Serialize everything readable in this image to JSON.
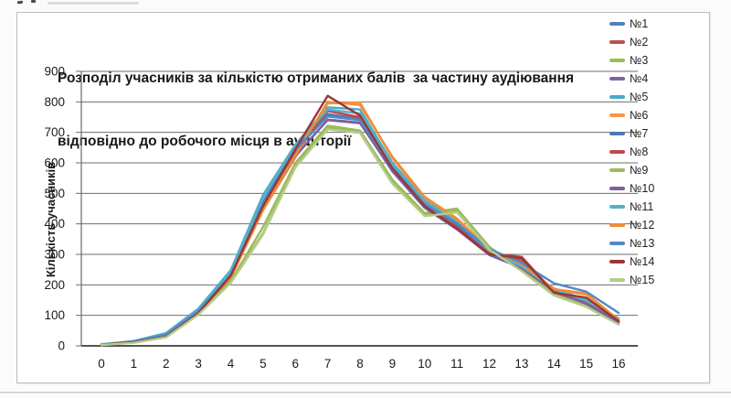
{
  "page": {
    "background": "#ffffff"
  },
  "chart_data": {
    "type": "line",
    "title_line1": "Розподіл учасників за кількістю отриманих балів  за частину аудіювання",
    "title_line2": "відповідно до робочого місця в аудиторії",
    "ylabel": "Кількість учасників",
    "xlabel": "",
    "x": [
      0,
      1,
      2,
      3,
      4,
      5,
      6,
      7,
      8,
      9,
      10,
      11,
      12,
      13,
      14,
      15,
      16
    ],
    "ylim": [
      0,
      900
    ],
    "y_ticks": [
      0,
      100,
      200,
      300,
      400,
      500,
      600,
      700,
      800,
      900
    ],
    "grid": true,
    "legend_position": "right",
    "grid_color": "#6e6e6e",
    "axis_color": "#3c3c3c",
    "minor_axis_color": "#6b6b6b",
    "series": [
      {
        "name": "№1",
        "color": "#4F81BD",
        "values": [
          4,
          14,
          36,
          113,
          230,
          465,
          640,
          760,
          745,
          590,
          470,
          400,
          310,
          265,
          185,
          148,
          85
        ]
      },
      {
        "name": "№2",
        "color": "#C0504D",
        "values": [
          4,
          13,
          32,
          110,
          225,
          455,
          635,
          770,
          750,
          580,
          460,
          390,
          305,
          280,
          178,
          143,
          80
        ]
      },
      {
        "name": "№3",
        "color": "#9BBB59",
        "values": [
          3,
          11,
          30,
          106,
          210,
          370,
          590,
          715,
          700,
          540,
          430,
          445,
          320,
          252,
          172,
          133,
          74
        ]
      },
      {
        "name": "№4",
        "color": "#8064A2",
        "values": [
          4,
          14,
          35,
          112,
          228,
          450,
          625,
          740,
          730,
          575,
          455,
          385,
          300,
          258,
          182,
          140,
          79
        ]
      },
      {
        "name": "№5",
        "color": "#4BACC6",
        "values": [
          5,
          16,
          42,
          122,
          248,
          495,
          660,
          782,
          775,
          600,
          480,
          410,
          315,
          262,
          188,
          150,
          90
        ]
      },
      {
        "name": "№6",
        "color": "#F79646",
        "values": [
          4,
          13,
          33,
          110,
          222,
          445,
          618,
          795,
          798,
          615,
          485,
          415,
          312,
          266,
          184,
          168,
          86
        ]
      },
      {
        "name": "№7",
        "color": "#4779B7",
        "values": [
          4,
          15,
          38,
          115,
          235,
          470,
          648,
          755,
          742,
          588,
          468,
          398,
          308,
          260,
          186,
          146,
          84
        ]
      },
      {
        "name": "№8",
        "color": "#BE4B48",
        "values": [
          4,
          12,
          31,
          108,
          224,
          452,
          632,
          772,
          748,
          578,
          455,
          388,
          303,
          292,
          176,
          141,
          78
        ]
      },
      {
        "name": "№9",
        "color": "#9CBB5C",
        "values": [
          3,
          11,
          29,
          104,
          212,
          390,
          600,
          722,
          706,
          545,
          435,
          450,
          325,
          248,
          168,
          130,
          72
        ]
      },
      {
        "name": "№10",
        "color": "#7C60A0",
        "values": [
          4,
          14,
          34,
          111,
          226,
          448,
          622,
          742,
          732,
          572,
          452,
          382,
          298,
          255,
          180,
          138,
          77
        ]
      },
      {
        "name": "№11",
        "color": "#55B1C8",
        "values": [
          5,
          15,
          40,
          118,
          242,
          485,
          655,
          775,
          762,
          595,
          475,
          405,
          312,
          260,
          186,
          148,
          88
        ]
      },
      {
        "name": "№12",
        "color": "#F08C36",
        "values": [
          4,
          13,
          34,
          112,
          224,
          448,
          625,
          800,
          790,
          620,
          488,
          418,
          315,
          268,
          186,
          172,
          85
        ]
      },
      {
        "name": "№13",
        "color": "#5289C7",
        "values": [
          4,
          14,
          37,
          114,
          232,
          462,
          642,
          752,
          740,
          585,
          465,
          402,
          318,
          272,
          205,
          178,
          108
        ]
      },
      {
        "name": "№14",
        "color": "#9A3734",
        "values": [
          4,
          12,
          30,
          107,
          230,
          458,
          645,
          820,
          755,
          582,
          458,
          385,
          300,
          288,
          174,
          158,
          81
        ]
      },
      {
        "name": "№15",
        "color": "#B6CC8C",
        "values": [
          3,
          10,
          28,
          102,
          206,
          365,
          585,
          710,
          698,
          532,
          425,
          438,
          316,
          245,
          165,
          128,
          70
        ]
      }
    ]
  }
}
